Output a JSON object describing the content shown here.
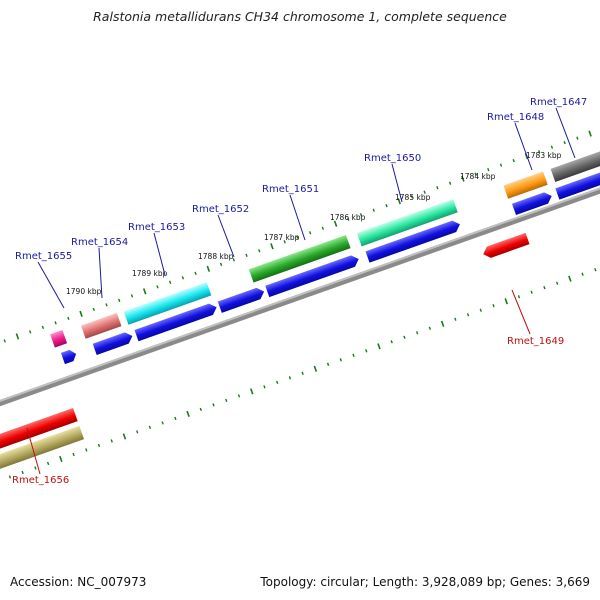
{
  "title": "Ralstonia metallidurans CH34 chromosome 1, complete sequence",
  "accession_text": "Accession: NC_007973",
  "topology_text": "Topology: circular; Length: 3,928,089 bp; Genes: 3,669",
  "colors": {
    "backbone": "#8a8a8a",
    "top_strand_label": "#1a1aa0",
    "bottom_strand_label": "#c01010",
    "blue_gene": "#1414e6",
    "tick": "#1a7a1a"
  },
  "kbp_labels": [
    "1790 kbp",
    "1789 kbp",
    "1788 kbp",
    "1787 kbp",
    "1786 kbp",
    "1785 kbp",
    "1784 kbp",
    "1783 kbp"
  ],
  "top_labels": [
    {
      "text": "Rmet_1655"
    },
    {
      "text": "Rmet_1654"
    },
    {
      "text": "Rmet_1653"
    },
    {
      "text": "Rmet_1652"
    },
    {
      "text": "Rmet_1651"
    },
    {
      "text": "Rmet_1650"
    },
    {
      "text": "Rmet_1648"
    },
    {
      "text": "Rmet_1647"
    }
  ],
  "bottom_labels": [
    {
      "text": "Rmet_1649"
    },
    {
      "text": "Rmet_1656"
    }
  ]
}
